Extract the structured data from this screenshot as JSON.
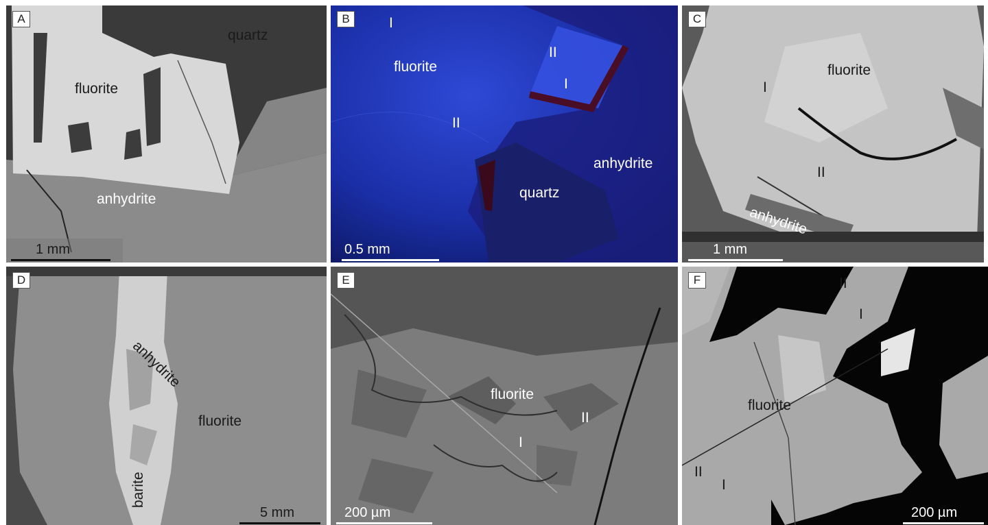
{
  "panels": [
    {
      "letter": "A",
      "labels": [
        "quartz",
        "fluorite",
        "anhydrite"
      ],
      "scale": "1 mm"
    },
    {
      "letter": "B",
      "labels": [
        "I",
        "fluorite",
        "II",
        "I",
        "II",
        "anhydrite",
        "quartz"
      ],
      "scale": "0.5 mm"
    },
    {
      "letter": "C",
      "labels": [
        "fluorite",
        "I",
        "II",
        "anhydrite"
      ],
      "scale": "1 mm"
    },
    {
      "letter": "D",
      "labels": [
        "anhydrite",
        "fluorite",
        "barite"
      ],
      "scale": "5 mm"
    },
    {
      "letter": "E",
      "labels": [
        "fluorite",
        "II",
        "I"
      ],
      "scale": "200 µm"
    },
    {
      "letter": "F",
      "labels": [
        "II",
        "I",
        "fluorite",
        "II",
        "I"
      ],
      "scale": "200 µm"
    }
  ],
  "colors": {
    "quartz": "#3c3c3c",
    "fluorite_bse": "#d6d6d6",
    "anhydrite": "#8a8a8a",
    "cl_background": "#1a2f9c",
    "resin": "#050505"
  }
}
